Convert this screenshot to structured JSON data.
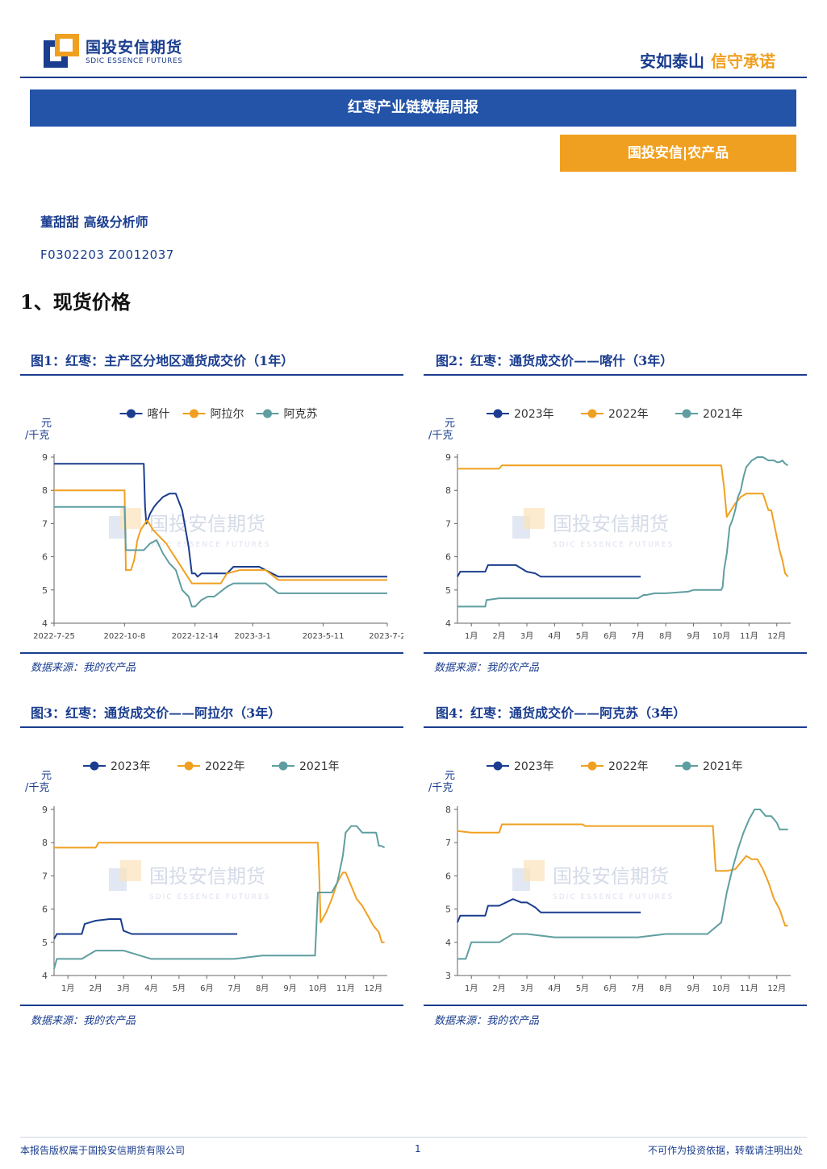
{
  "header": {
    "logo_cn": "国投安信期货",
    "logo_en": "SDIC ESSENCE FUTURES",
    "slogan_main": "安如泰山",
    "slogan_accent": "信守承诺"
  },
  "report_title": "红枣产业链数据周报",
  "department_tag": "国投安信|农产品",
  "analyst": "董甜甜  高级分析师",
  "qualification_codes": "F0302203  Z0012037",
  "section_heading": "1、现货价格",
  "watermark": {
    "cn": "国投安信期货",
    "en": "SDIC ESSENCE FUTURES"
  },
  "colors": {
    "navy": "#1a3d8f",
    "orange": "#f0a020",
    "teal": "#5f9ea0",
    "title_bar": "#2354a8"
  },
  "figures": [
    {
      "title": "图1：红枣：主产区分地区通货成交价（1年）",
      "source": "数据来源：我的农产品"
    },
    {
      "title": "图2：红枣：通货成交价——喀什（3年）",
      "source": "数据来源：我的农产品"
    },
    {
      "title": "图3：红枣：通货成交价——阿拉尔（3年）",
      "source": "数据来源：我的农产品"
    },
    {
      "title": "图4：红枣：通货成交价——阿克苏（3年）",
      "source": "数据来源：我的农产品"
    }
  ],
  "chart_data": [
    {
      "type": "line",
      "ylabel": "元/千克",
      "ylim": [
        4,
        9
      ],
      "yticks": [
        4,
        5,
        6,
        7,
        8,
        9
      ],
      "xlim": [
        0,
        52
      ],
      "xticks": [
        0,
        11,
        22,
        31,
        42,
        52
      ],
      "xtick_labels": [
        "2022-7-25",
        "2022-10-8",
        "2022-12-14",
        "2023-3-1",
        "2023-5-11",
        "2023-7-2"
      ],
      "legend_position": "top",
      "series": [
        {
          "name": "喀什",
          "color": "#1a3d8f",
          "x": [
            0,
            14,
            14.2,
            14.4,
            15,
            15.6,
            16,
            17,
            18,
            19,
            20,
            21,
            21.5,
            22,
            22.4,
            23,
            25,
            27,
            28,
            30,
            31,
            32,
            35,
            37,
            40,
            44,
            48,
            52
          ],
          "y": [
            8.8,
            8.8,
            7.5,
            7.0,
            7.3,
            7.5,
            7.6,
            7.8,
            7.9,
            7.9,
            7.4,
            6.3,
            5.5,
            5.5,
            5.4,
            5.5,
            5.5,
            5.5,
            5.7,
            5.7,
            5.7,
            5.7,
            5.4,
            5.4,
            5.4,
            5.4,
            5.4,
            5.4
          ]
        },
        {
          "name": "阿拉尔",
          "color": "#f0a020",
          "x": [
            0,
            11,
            11.2,
            12,
            12.5,
            13,
            13.5,
            14.5,
            15.5,
            16.5,
            17.5,
            18.5,
            19.5,
            20.5,
            21.5,
            22,
            24,
            26,
            27,
            29,
            31,
            33,
            35,
            37,
            40,
            44,
            48,
            52
          ],
          "y": [
            8.0,
            8.0,
            5.6,
            5.6,
            5.9,
            6.5,
            6.8,
            7.1,
            6.8,
            6.6,
            6.4,
            6.1,
            5.8,
            5.5,
            5.2,
            5.2,
            5.2,
            5.2,
            5.5,
            5.6,
            5.6,
            5.6,
            5.3,
            5.3,
            5.3,
            5.3,
            5.3,
            5.3
          ]
        },
        {
          "name": "阿克苏",
          "color": "#5f9ea0",
          "x": [
            0,
            11,
            11.2,
            12,
            13,
            14,
            15,
            16,
            17,
            18,
            19,
            20,
            21,
            21.5,
            22,
            23,
            24,
            25,
            27,
            28,
            30,
            33,
            35,
            37,
            40,
            44,
            48,
            52
          ],
          "y": [
            7.5,
            7.5,
            6.2,
            6.2,
            6.2,
            6.2,
            6.4,
            6.5,
            6.1,
            5.8,
            5.6,
            5.0,
            4.8,
            4.5,
            4.5,
            4.7,
            4.8,
            4.8,
            5.1,
            5.2,
            5.2,
            5.2,
            4.9,
            4.9,
            4.9,
            4.9,
            4.9,
            4.9
          ]
        }
      ]
    },
    {
      "type": "line",
      "ylabel": "元/千克",
      "ylim": [
        4,
        9
      ],
      "yticks": [
        4,
        5,
        6,
        7,
        8,
        9
      ],
      "xlim": [
        0.5,
        12.5
      ],
      "xticks": [
        1,
        2,
        3,
        4,
        5,
        6,
        7,
        8,
        9,
        10,
        11,
        12
      ],
      "xtick_labels": [
        "1月",
        "2月",
        "3月",
        "4月",
        "5月",
        "6月",
        "7月",
        "8月",
        "9月",
        "10月",
        "11月",
        "12月"
      ],
      "legend_position": "top",
      "series": [
        {
          "name": "2023年",
          "color": "#1a3d8f",
          "x": [
            0.5,
            0.6,
            1.5,
            1.6,
            2.5,
            2.6,
            2.9,
            3.0,
            3.3,
            3.5,
            4,
            5,
            6,
            7,
            7.1
          ],
          "y": [
            5.4,
            5.55,
            5.55,
            5.75,
            5.75,
            5.75,
            5.6,
            5.55,
            5.5,
            5.4,
            5.4,
            5.4,
            5.4,
            5.4,
            5.4
          ]
        },
        {
          "name": "2022年",
          "color": "#f0a020",
          "x": [
            0.5,
            1,
            2,
            2.1,
            3,
            4,
            5,
            6,
            7,
            8,
            9,
            10,
            10.1,
            10.2,
            10.35,
            10.5,
            10.7,
            10.9,
            11.1,
            11.3,
            11.5,
            11.7,
            11.8,
            11.9,
            12.0,
            12.1,
            12.2,
            12.3,
            12.4
          ],
          "y": [
            8.65,
            8.65,
            8.65,
            8.75,
            8.75,
            8.75,
            8.75,
            8.75,
            8.75,
            8.75,
            8.75,
            8.75,
            8.1,
            7.2,
            7.4,
            7.6,
            7.8,
            7.9,
            7.9,
            7.9,
            7.9,
            7.4,
            7.4,
            7.0,
            6.6,
            6.2,
            5.9,
            5.5,
            5.4
          ]
        },
        {
          "name": "2021年",
          "color": "#5f9ea0",
          "x": [
            0.5,
            1,
            1.5,
            1.55,
            2,
            2.5,
            3,
            4,
            5,
            6,
            7,
            7.2,
            7.3,
            7.6,
            8,
            8.8,
            9,
            10,
            10.05,
            10.1,
            10.2,
            10.3,
            10.4,
            10.5,
            10.6,
            10.7,
            10.8,
            10.9,
            11.1,
            11.3,
            11.5,
            11.7,
            11.9,
            12.0,
            12.1,
            12.2,
            12.3,
            12.4
          ],
          "y": [
            4.5,
            4.5,
            4.5,
            4.7,
            4.75,
            4.75,
            4.75,
            4.75,
            4.75,
            4.75,
            4.75,
            4.85,
            4.85,
            4.9,
            4.9,
            4.95,
            5.0,
            5.0,
            5.1,
            5.6,
            6.1,
            6.9,
            7.1,
            7.4,
            7.8,
            8.0,
            8.4,
            8.7,
            8.9,
            9.0,
            9.0,
            8.9,
            8.9,
            8.85,
            8.85,
            8.9,
            8.8,
            8.75
          ]
        }
      ]
    },
    {
      "type": "line",
      "ylabel": "元/千克",
      "ylim": [
        4,
        9
      ],
      "yticks": [
        4,
        5,
        6,
        7,
        8,
        9
      ],
      "xlim": [
        0.5,
        12.5
      ],
      "xticks": [
        1,
        2,
        3,
        4,
        5,
        6,
        7,
        8,
        9,
        10,
        11,
        12
      ],
      "xtick_labels": [
        "1月",
        "2月",
        "3月",
        "4月",
        "5月",
        "6月",
        "7月",
        "8月",
        "9月",
        "10月",
        "11月",
        "12月"
      ],
      "legend_position": "top",
      "series": [
        {
          "name": "2023年",
          "color": "#1a3d8f",
          "x": [
            0.5,
            0.6,
            1.5,
            1.6,
            2,
            2.5,
            2.9,
            3.0,
            3.3,
            4,
            5,
            6,
            7,
            7.1
          ],
          "y": [
            5.1,
            5.25,
            5.25,
            5.55,
            5.65,
            5.7,
            5.7,
            5.35,
            5.25,
            5.25,
            5.25,
            5.25,
            5.25,
            5.25
          ]
        },
        {
          "name": "2022年",
          "color": "#f0a020",
          "x": [
            0.5,
            1,
            2,
            2.1,
            3,
            4,
            5,
            6,
            7,
            8,
            9,
            10,
            10.05,
            10.1,
            10.3,
            10.5,
            10.7,
            10.9,
            11.0,
            11.2,
            11.4,
            11.6,
            11.8,
            12.0,
            12.2,
            12.3,
            12.4
          ],
          "y": [
            7.85,
            7.85,
            7.85,
            8.0,
            8.0,
            8.0,
            8.0,
            8.0,
            8.0,
            8.0,
            8.0,
            8.0,
            7.0,
            5.6,
            5.9,
            6.3,
            6.8,
            7.1,
            7.1,
            6.7,
            6.3,
            6.1,
            5.8,
            5.5,
            5.3,
            5.0,
            5.0
          ]
        },
        {
          "name": "2021年",
          "color": "#5f9ea0",
          "x": [
            0.5,
            0.6,
            1,
            1.5,
            2,
            3,
            4,
            5,
            6,
            7,
            8,
            9,
            9.9,
            10.0,
            10.2,
            10.5,
            10.7,
            10.9,
            11.0,
            11.2,
            11.4,
            11.6,
            11.8,
            12.0,
            12.1,
            12.2,
            12.3,
            12.4
          ],
          "y": [
            4.2,
            4.5,
            4.5,
            4.5,
            4.75,
            4.75,
            4.5,
            4.5,
            4.5,
            4.5,
            4.6,
            4.6,
            4.6,
            6.5,
            6.5,
            6.5,
            6.8,
            7.6,
            8.3,
            8.5,
            8.5,
            8.3,
            8.3,
            8.3,
            8.3,
            7.9,
            7.9,
            7.85
          ]
        }
      ]
    },
    {
      "type": "line",
      "ylabel": "元/千克",
      "ylim": [
        3,
        8
      ],
      "yticks": [
        3,
        4,
        5,
        6,
        7,
        8
      ],
      "xlim": [
        0.5,
        12.5
      ],
      "xticks": [
        1,
        2,
        3,
        4,
        5,
        6,
        7,
        8,
        9,
        10,
        11,
        12
      ],
      "xtick_labels": [
        "1月",
        "2月",
        "3月",
        "4月",
        "5月",
        "6月",
        "7月",
        "8月",
        "9月",
        "10月",
        "11月",
        "12月"
      ],
      "legend_position": "top",
      "series": [
        {
          "name": "2023年",
          "color": "#1a3d8f",
          "x": [
            0.5,
            0.6,
            1.5,
            1.6,
            2,
            2.5,
            2.8,
            3.0,
            3.3,
            3.5,
            4,
            5,
            6,
            7,
            7.1
          ],
          "y": [
            4.6,
            4.8,
            4.8,
            5.1,
            5.1,
            5.3,
            5.2,
            5.2,
            5.05,
            4.9,
            4.9,
            4.9,
            4.9,
            4.9,
            4.9
          ]
        },
        {
          "name": "2022年",
          "color": "#f0a020",
          "x": [
            0.5,
            1,
            2,
            2.1,
            3,
            4,
            5,
            5.1,
            6,
            7,
            8,
            9,
            9.5,
            9.7,
            9.8,
            10.0,
            10.2,
            10.5,
            10.7,
            10.9,
            11.1,
            11.3,
            11.5,
            11.7,
            11.9,
            12.1,
            12.3,
            12.4
          ],
          "y": [
            7.35,
            7.3,
            7.3,
            7.55,
            7.55,
            7.55,
            7.55,
            7.5,
            7.5,
            7.5,
            7.5,
            7.5,
            7.5,
            7.5,
            6.15,
            6.15,
            6.15,
            6.2,
            6.4,
            6.6,
            6.5,
            6.5,
            6.2,
            5.8,
            5.3,
            5.0,
            4.5,
            4.5
          ]
        },
        {
          "name": "2021年",
          "color": "#5f9ea0",
          "x": [
            0.5,
            0.8,
            1.0,
            2,
            2.5,
            3,
            4,
            5,
            6,
            7,
            8,
            9,
            9.5,
            10.0,
            10.2,
            10.4,
            10.6,
            10.8,
            11.0,
            11.2,
            11.4,
            11.6,
            11.8,
            12.0,
            12.1,
            12.2,
            12.3,
            12.4
          ],
          "y": [
            3.5,
            3.5,
            4.0,
            4.0,
            4.25,
            4.25,
            4.15,
            4.15,
            4.15,
            4.15,
            4.25,
            4.25,
            4.25,
            4.6,
            5.5,
            6.2,
            6.8,
            7.3,
            7.7,
            8.0,
            8.0,
            7.8,
            7.8,
            7.6,
            7.4,
            7.4,
            7.4,
            7.4
          ]
        }
      ]
    }
  ]
}
